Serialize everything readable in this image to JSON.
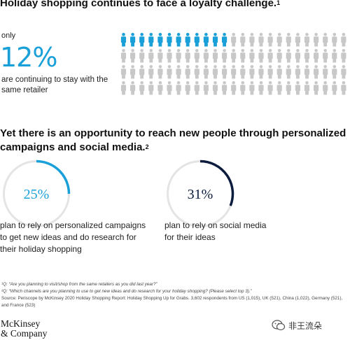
{
  "headline1": "Holiday shopping continues to face a loyalty challenge.",
  "headline1_sup": "1",
  "stat": {
    "prefix": "only",
    "value": "12%",
    "description": "are continuing to stay with the same retailer"
  },
  "headline2": "Yet there is an opportunity to reach new people through personalized campaigns and social media.",
  "headline2_sup": "2",
  "chart_data": [
    {
      "type": "pictogram",
      "total_icons": 100,
      "highlighted_icons": 12,
      "value_percent": 12,
      "highlight_color": "#1aa0d8",
      "base_color": "#c8c8c8"
    },
    {
      "type": "pie",
      "style": "donut",
      "value_percent": 25,
      "value_label": "25%",
      "caption": "plan to rely on personalized campaigns to get new ideas and do research for their holiday shopping",
      "color": "#1aa0d8",
      "track_color": "#e4e4e4"
    },
    {
      "type": "pie",
      "style": "donut",
      "value_percent": 31,
      "value_label": "31%",
      "caption": "plan to rely on social media for their ideas",
      "color": "#0b1c3d",
      "track_color": "#e4e4e4"
    }
  ],
  "footnotes": {
    "note1": "¹Q: “Are you planning to visit/shop from the same retailers as you did last year?”",
    "note2": "²Q: “Which channels are you planning to use to get new ideas and do research for your holiday shopping? (Please select top 3).”",
    "source": "Source: Periscope by McKinsey 2020 Holiday Shopping Report: Holiday Shopping Up for Grabs. 3,602 respondents from US (1,015), UK (521), China (1,022), Germany (521), and France (523)"
  },
  "logo": {
    "line1": "McKinsey",
    "line2": "& Company"
  },
  "watermark": "非王流朵"
}
